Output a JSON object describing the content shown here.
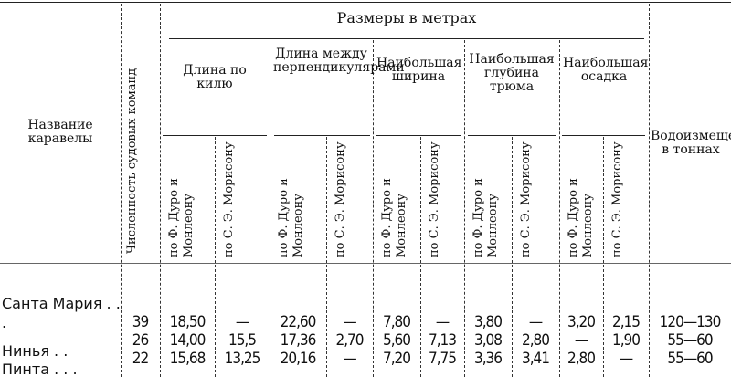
{
  "headers": {
    "name": "Название каравелы",
    "crew": "Численность судовых команд",
    "sizes": "Размеры в метрах",
    "groups": [
      "Длина по килю",
      "Длина между перпендикулярами",
      "Наибольшая ширина",
      "Наибольшая глубина трюма",
      "Наибольшая осадка"
    ],
    "sub_a": "по Ф. Дуро и Монлеону",
    "sub_b": "по С. Э. Морисону",
    "displacement": "Водоизмещение в тоннах"
  },
  "rows": [
    {
      "name": "Санта Мария . . .",
      "values": [
        "39",
        "18,50",
        "—",
        "22,60",
        "—",
        "7,80",
        "—",
        "3,80",
        "—",
        "3,20",
        "2,15",
        "120—130"
      ]
    },
    {
      "name": "Нинья . .",
      "values": [
        "26",
        "14,00",
        "15,5",
        "17,36",
        "2,70",
        "5,60",
        "7,13",
        "3,08",
        "2,80",
        "—",
        "1,90",
        "55—60"
      ]
    },
    {
      "name": "Пинта . . .",
      "values": [
        "22",
        "15,68",
        "13,25",
        "20,16",
        "—",
        "7,20",
        "7,75",
        "3,36",
        "3,41",
        "2,80",
        "—",
        "55—60"
      ]
    }
  ]
}
